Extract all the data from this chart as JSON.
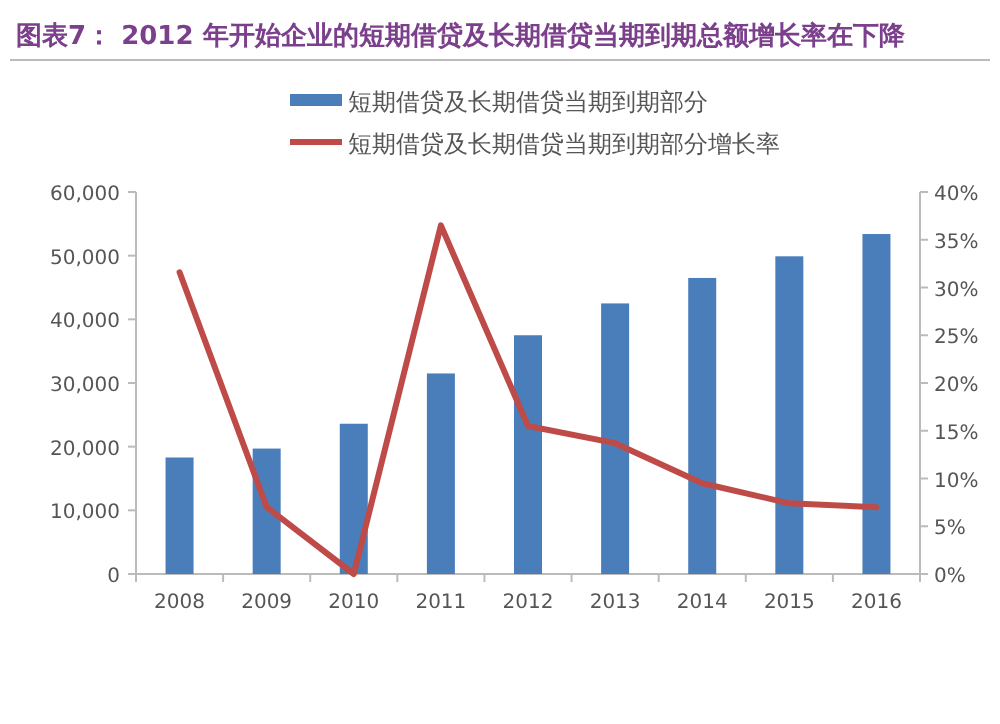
{
  "chart_data": {
    "type": "bar",
    "title": "图表7：  2012 年开始企业的短期借贷及长期借贷当期到期总额增长率在下降",
    "categories": [
      "2008",
      "2009",
      "2010",
      "2011",
      "2012",
      "2013",
      "2014",
      "2015",
      "2016"
    ],
    "series": [
      {
        "name": "短期借贷及长期借贷当期到期部分",
        "color": "#4a7ebb",
        "values": [
          18300,
          19700,
          23600,
          31500,
          37500,
          42500,
          46500,
          49900,
          53400
        ]
      },
      {
        "name": "短期借贷及长期借贷当期到期部分增长率",
        "type": "line",
        "axis": "y2",
        "color": "#be4b48",
        "values": [
          31.6,
          7.0,
          0,
          36.5,
          15.5,
          13.7,
          9.5,
          7.4,
          7.0
        ]
      }
    ],
    "ylim": [
      0,
      60000
    ],
    "yticks": [
      {
        "value": 0,
        "label": "0"
      },
      {
        "value": 10000,
        "label": "10,000"
      },
      {
        "value": 20000,
        "label": "20,000"
      },
      {
        "value": 30000,
        "label": "30,000"
      },
      {
        "value": 40000,
        "label": "40,000"
      },
      {
        "value": 50000,
        "label": "50,000"
      },
      {
        "value": 60000,
        "label": "60,000"
      }
    ],
    "y2lim": [
      0,
      40
    ],
    "y2ticks": [
      {
        "value": 0,
        "label": "0%"
      },
      {
        "value": 5,
        "label": "5%"
      },
      {
        "value": 10,
        "label": "10%"
      },
      {
        "value": 15,
        "label": "15%"
      },
      {
        "value": 20,
        "label": "20%"
      },
      {
        "value": 25,
        "label": "25%"
      },
      {
        "value": 30,
        "label": "30%"
      },
      {
        "value": 35,
        "label": "35%"
      },
      {
        "value": 40,
        "label": "40%"
      }
    ],
    "legend": "top",
    "grid": false
  }
}
